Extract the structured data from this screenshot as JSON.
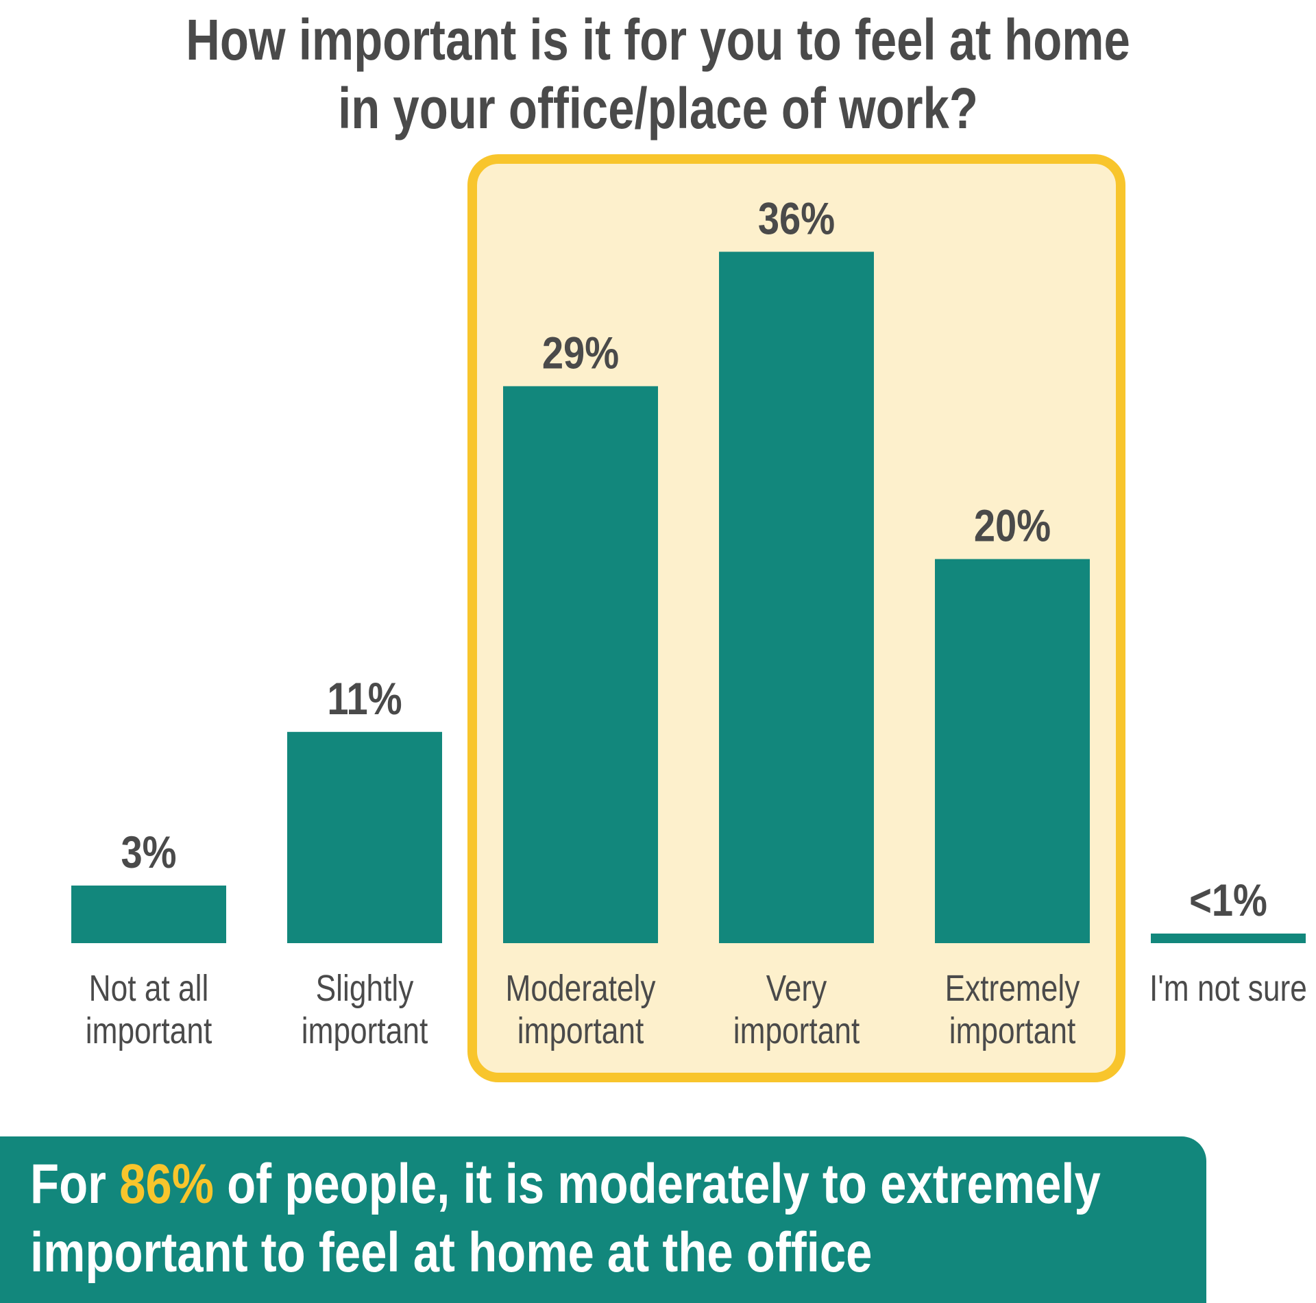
{
  "chart_data": {
    "type": "bar",
    "title_lines": [
      "How important is it for you to feel at home",
      "in your office/place of work?"
    ],
    "categories": [
      [
        "Not at all",
        "important"
      ],
      [
        "Slightly",
        "important"
      ],
      [
        "Moderately",
        "important"
      ],
      [
        "Very",
        "important"
      ],
      [
        "Extremely",
        "important"
      ],
      [
        "I'm not sure"
      ]
    ],
    "values": [
      3,
      11,
      29,
      36,
      20,
      0.5
    ],
    "value_labels": [
      "3%",
      "11%",
      "29%",
      "36%",
      "20%",
      "<1%"
    ],
    "ylim": [
      0,
      36
    ],
    "highlight_range": [
      2,
      4
    ],
    "grid": false,
    "legend": "none"
  },
  "colors": {
    "bar": "#12877c",
    "text": "#4a4a4a",
    "highlight_fill": "#fdf0cc",
    "highlight_border": "#f8c52c",
    "footer_bg": "#12877c",
    "footer_accent": "#f8c52c"
  },
  "footer": {
    "prefix": "For ",
    "highlight": "86%",
    "line1_rest": " of people, it is moderately to extremely",
    "line2": "important to feel at home at the office"
  }
}
